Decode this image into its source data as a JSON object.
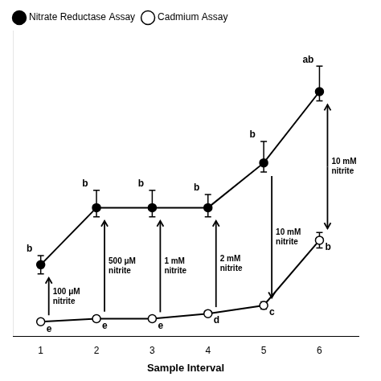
{
  "chart_data": {
    "type": "line",
    "x": [
      1,
      2,
      3,
      4,
      5,
      6
    ],
    "xlabel": "Sample Interval",
    "xlim": [
      0.5,
      6.7
    ],
    "xticks": [
      1,
      2,
      3,
      4,
      5,
      6
    ],
    "ylim": [
      -0.5,
      14.5
    ],
    "yticks": [],
    "tick_labels": "x",
    "grid": false,
    "legend": "top",
    "series": [
      {
        "name": "Nitrate Reductase Assay",
        "color": "#000000",
        "marker": "filled",
        "values": [
          3.0,
          5.8,
          5.8,
          5.8,
          8.0,
          11.5
        ],
        "error_up": [
          0.45,
          0.85,
          0.85,
          0.65,
          1.05,
          1.25
        ],
        "error_down": [
          0.45,
          0.45,
          0.45,
          0.45,
          0.45,
          0.45
        ],
        "point_labels": [
          "b",
          "b",
          "b",
          "b",
          "b",
          "ab"
        ]
      },
      {
        "name": "Cadmium Assay",
        "color": "#000000",
        "marker": "open",
        "values": [
          0.2,
          0.35,
          0.35,
          0.6,
          1.0,
          4.2
        ],
        "error_up": [
          0.12,
          0.15,
          0.12,
          0.12,
          0.18,
          0.38
        ],
        "error_down": [
          0.12,
          0.15,
          0.12,
          0.12,
          0.18,
          0.38
        ],
        "point_labels": [
          "e",
          "e",
          "e",
          "d",
          "c",
          "b"
        ]
      }
    ],
    "annotations": [
      {
        "x": 1,
        "text": "100 μM\nnitrite",
        "arrow": "up"
      },
      {
        "x": 2,
        "text": "500 μM\nnitrite",
        "arrow": "up"
      },
      {
        "x": 3,
        "text": "1 mM\nnitrite",
        "arrow": "up"
      },
      {
        "x": 4,
        "text": "2 mM\nnitrite",
        "arrow": "up"
      },
      {
        "x": 5,
        "text": "10 mM\nnitrite",
        "arrow": "down"
      },
      {
        "x": 6,
        "text": "10 mM\nnitrite",
        "arrow": "both"
      }
    ]
  }
}
